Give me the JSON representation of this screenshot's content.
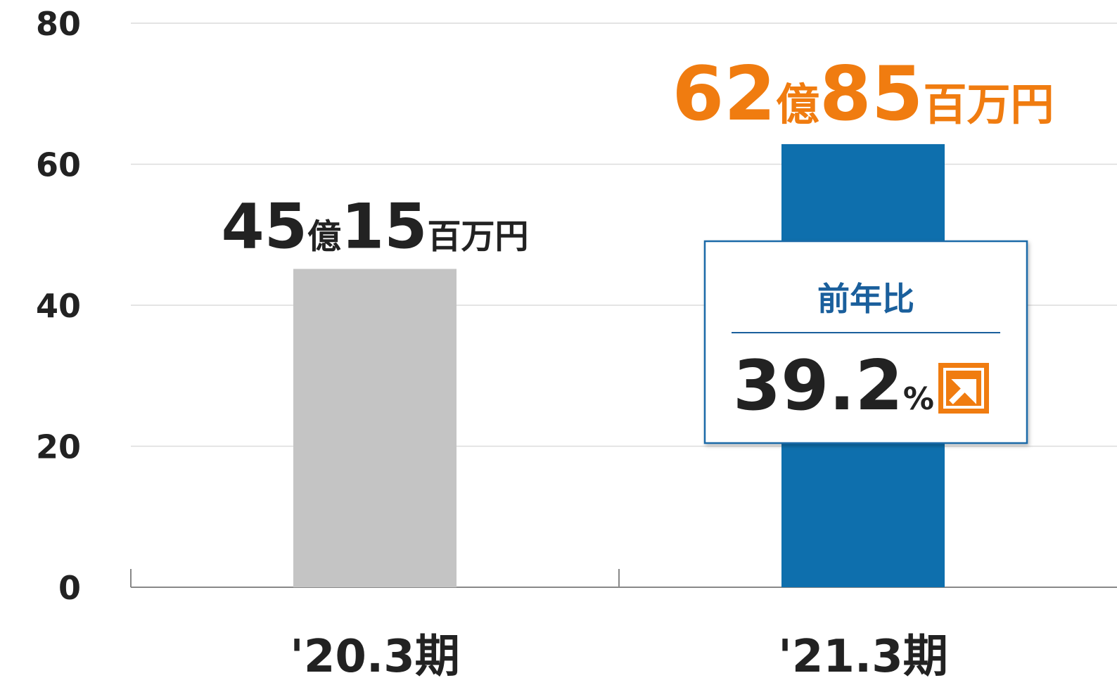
{
  "chart_data": {
    "type": "bar",
    "categories": [
      "'20.3期",
      "'21.3期"
    ],
    "values": [
      45.15,
      62.85
    ],
    "value_labels": [
      "45億15百万円",
      "62億85百万円"
    ],
    "colors": [
      "#c4c4c4",
      "#0e6fad"
    ],
    "label_colors": [
      "#222222",
      "#f07c10"
    ],
    "ylim": [
      0,
      80
    ],
    "yticks": [
      0,
      20,
      40,
      60,
      80
    ],
    "grid": true,
    "annotation": {
      "title": "前年比",
      "value": "39.2%"
    }
  }
}
